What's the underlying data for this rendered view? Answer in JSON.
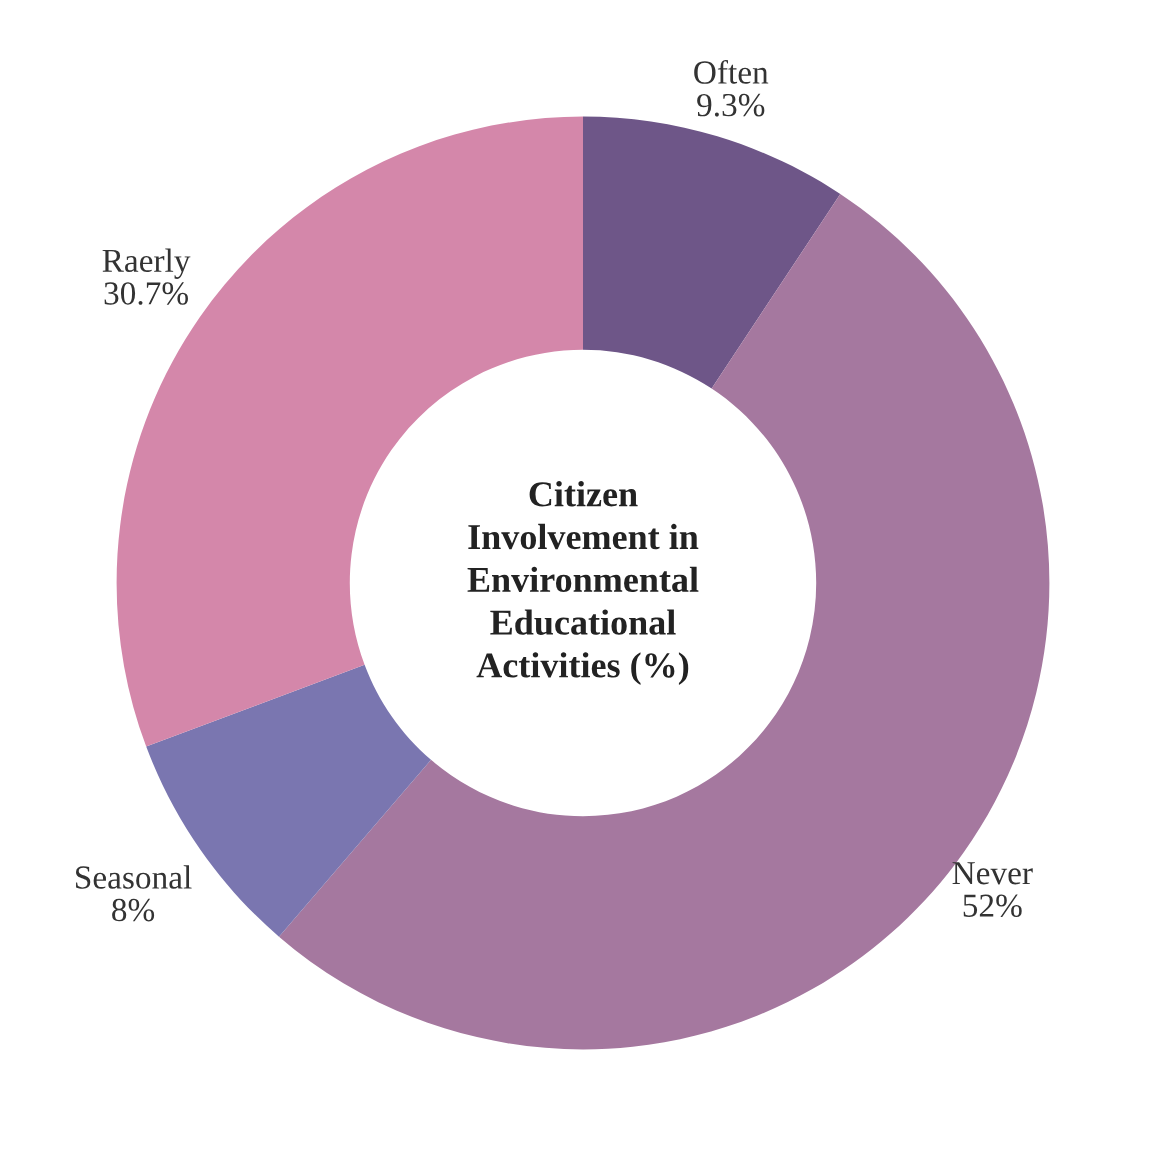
{
  "chart_data": {
    "type": "donut",
    "title": "Citizen Involvement in Environmental Educational Activities (%)",
    "categories": [
      "Often",
      "Never",
      "Seasonal",
      "Raerly"
    ],
    "values": [
      9.3,
      52,
      8,
      30.7
    ],
    "colors": [
      "#6e5688",
      "#a5789f",
      "#7a76b0",
      "#d487aa"
    ],
    "value_labels": [
      "9.3%",
      "52%",
      "8%",
      "30.7%"
    ],
    "legend": false
  }
}
